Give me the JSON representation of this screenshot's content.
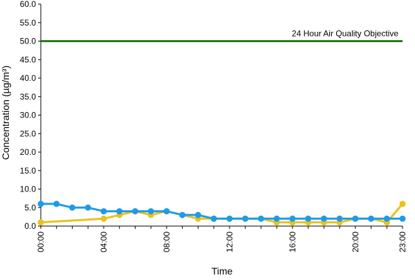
{
  "chart_data": {
    "type": "line",
    "title": "",
    "xlabel": "Time",
    "ylabel": "Concentration (µg/m³)",
    "ylim": [
      0,
      60
    ],
    "y_ticks": [
      "0.0",
      "5.0",
      "10.0",
      "15.0",
      "20.0",
      "25.0",
      "30.0",
      "35.0",
      "40.0",
      "45.0",
      "50.0",
      "55.0",
      "60.0"
    ],
    "x_tick_labels": [
      "00:00",
      "04:00",
      "08:00",
      "12:00",
      "16:00",
      "20:00",
      "23:00"
    ],
    "x": [
      "00:00",
      "01:00",
      "02:00",
      "03:00",
      "04:00",
      "05:00",
      "06:00",
      "07:00",
      "08:00",
      "09:00",
      "10:00",
      "11:00",
      "12:00",
      "13:00",
      "14:00",
      "15:00",
      "16:00",
      "17:00",
      "18:00",
      "19:00",
      "20:00",
      "21:00",
      "22:00",
      "23:00"
    ],
    "series": [
      {
        "color": "#e8c21f",
        "marker_color": "#e8c21f",
        "values": [
          1,
          null,
          null,
          null,
          2,
          3,
          4,
          3,
          4,
          3,
          2,
          2,
          2,
          2,
          2,
          1,
          1,
          1,
          1,
          1,
          2,
          2,
          1,
          6
        ]
      },
      {
        "color": "#1e9be8",
        "marker_color": "#1e9be8",
        "values": [
          6,
          6,
          5,
          5,
          4,
          4,
          4,
          4,
          4,
          3,
          3,
          2,
          2,
          2,
          2,
          2,
          2,
          2,
          2,
          2,
          2,
          2,
          2,
          2
        ]
      }
    ],
    "reference_line": {
      "value": 50,
      "label": "24 Hour Air Quality Objective",
      "color": "#2a7a1a"
    },
    "grid": false,
    "legend": "none"
  }
}
